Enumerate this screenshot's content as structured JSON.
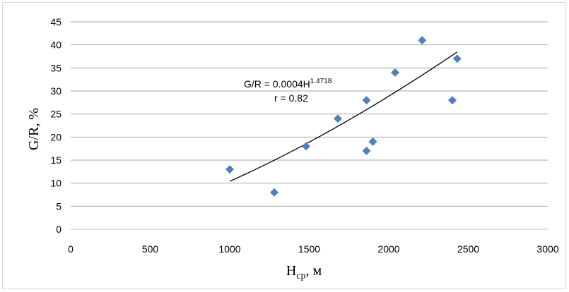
{
  "chart_data": {
    "type": "scatter",
    "title": "",
    "xlabel": {
      "main": "H",
      "sub": "ср",
      "suffix": ", м"
    },
    "ylabel": "G/R, %",
    "xlim": [
      0,
      3000
    ],
    "ylim": [
      0,
      45
    ],
    "xticks": [
      0,
      500,
      1000,
      1500,
      2000,
      2500,
      3000
    ],
    "yticks": [
      0,
      5,
      10,
      15,
      20,
      25,
      30,
      35,
      40,
      45
    ],
    "grid": "horizontal",
    "legend": "none",
    "marker_color": "#4f81bd",
    "points": [
      {
        "x": 1000,
        "y": 13
      },
      {
        "x": 1280,
        "y": 8
      },
      {
        "x": 1480,
        "y": 18
      },
      {
        "x": 1680,
        "y": 24
      },
      {
        "x": 1860,
        "y": 28
      },
      {
        "x": 1860,
        "y": 17
      },
      {
        "x": 1900,
        "y": 19
      },
      {
        "x": 2040,
        "y": 34
      },
      {
        "x": 2210,
        "y": 41
      },
      {
        "x": 2400,
        "y": 28
      },
      {
        "x": 2430,
        "y": 37
      }
    ],
    "trendline": {
      "type": "power",
      "coefficient": 0.0004,
      "exponent": 1.4718,
      "x_range": [
        1000,
        2430
      ],
      "color": "#000000"
    },
    "annotations": {
      "equation_prefix": "G/R = 0.0004H",
      "equation_exponent": "1.4718",
      "r_text": "r = 0.82"
    }
  }
}
